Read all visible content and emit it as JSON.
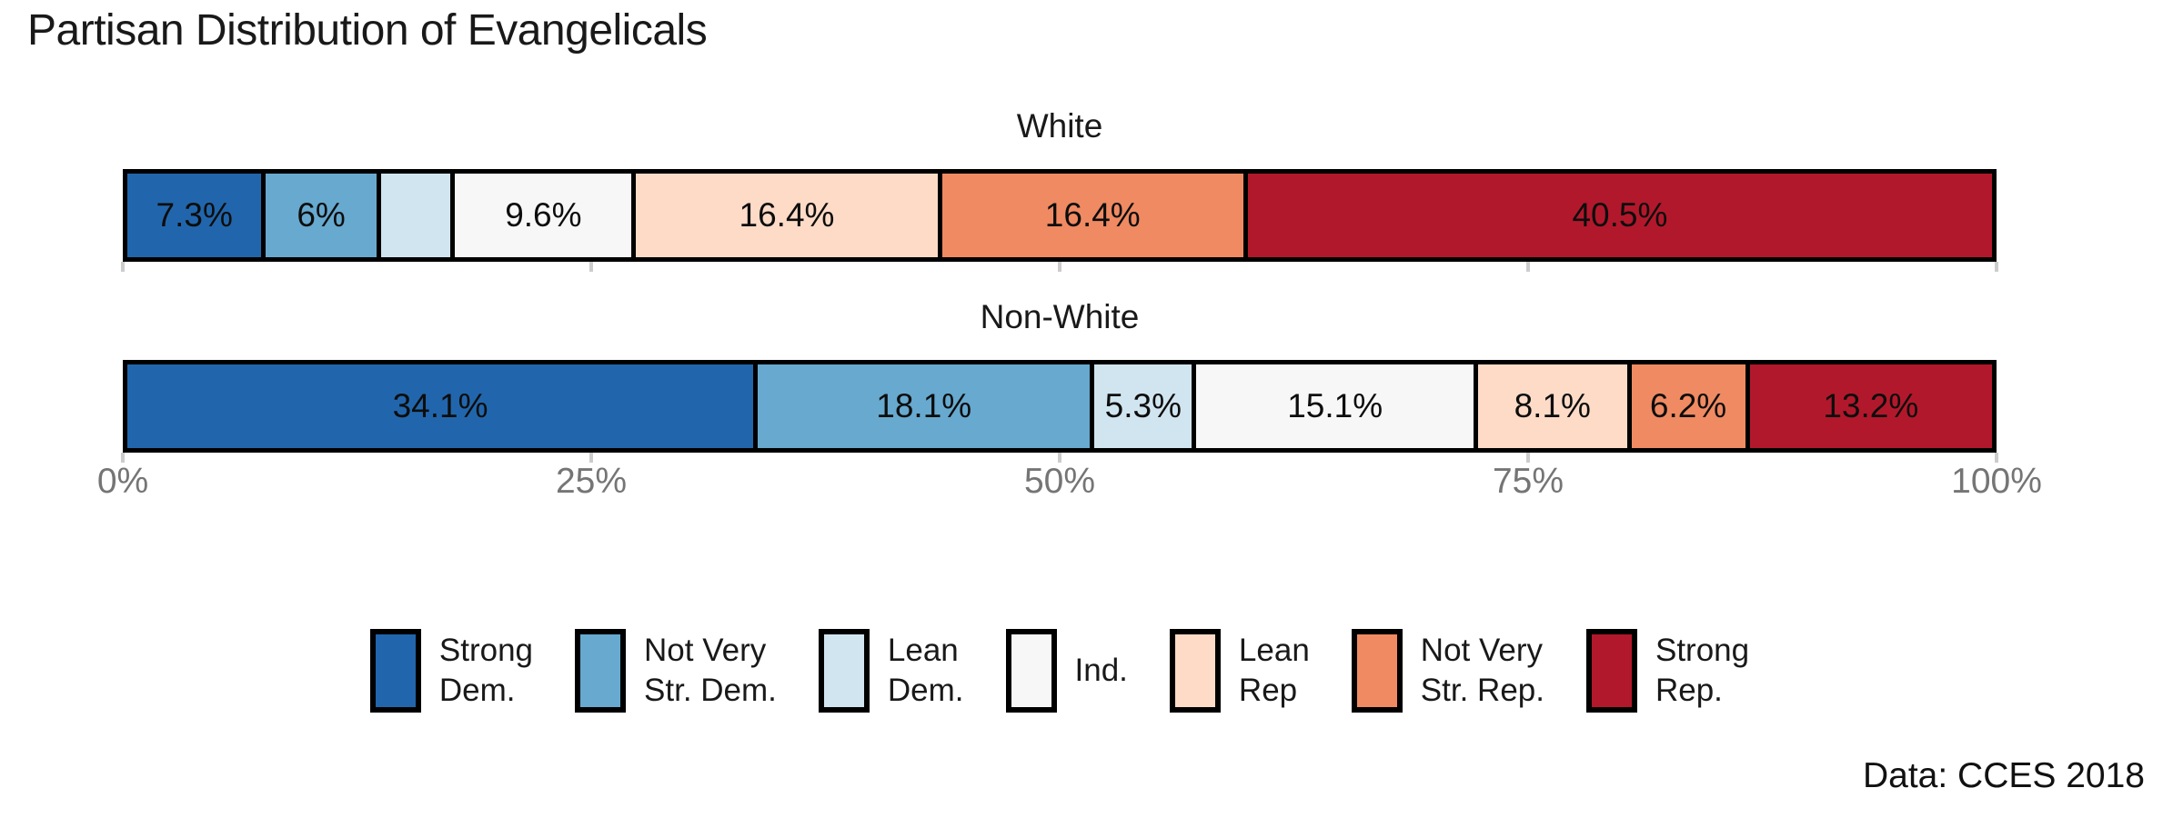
{
  "title": "Partisan Distribution of Evangelicals",
  "caption": "Data: CCES 2018",
  "chart_data": {
    "type": "bar",
    "variant": "stacked-horizontal-100pct",
    "title": "Partisan Distribution of Evangelicals",
    "caption": "Data: CCES 2018",
    "categories": [
      "Strong Dem.",
      "Not Very Str. Dem.",
      "Lean Dem.",
      "Ind.",
      "Lean Rep",
      "Not Very Str. Rep.",
      "Strong Rep."
    ],
    "colors": [
      "#2166ac",
      "#67a9cf",
      "#d1e5f0",
      "#f7f7f7",
      "#fddbc7",
      "#ef8a62",
      "#b2182b"
    ],
    "series": [
      {
        "name": "White",
        "values": [
          7.3,
          6,
          3.8,
          9.6,
          16.4,
          16.4,
          40.5
        ],
        "labels": [
          "7.3%",
          "6%",
          "",
          "9.6%",
          "16.4%",
          "16.4%",
          "40.5%"
        ]
      },
      {
        "name": "Non-White",
        "values": [
          34.1,
          18.1,
          5.3,
          15.1,
          8.1,
          6.2,
          13.2
        ],
        "labels": [
          "34.1%",
          "18.1%",
          "5.3%",
          "15.1%",
          "8.1%",
          "6.2%",
          "13.2%"
        ]
      }
    ],
    "xlim": [
      0,
      100
    ],
    "x_tick_values": [
      0,
      25,
      50,
      75,
      100
    ],
    "x_tick_labels": [
      "0%",
      "25%",
      "50%",
      "75%",
      "100%"
    ],
    "grid": false,
    "legend_position": "bottom",
    "legend_labels_two_line": [
      [
        "Strong",
        "Dem."
      ],
      [
        "Not Very",
        "Str. Dem."
      ],
      [
        "Lean",
        "Dem."
      ],
      [
        "Ind."
      ],
      [
        "Lean",
        "Rep"
      ],
      [
        "Not Very",
        "Str. Rep."
      ],
      [
        "Strong",
        "Rep."
      ]
    ]
  }
}
